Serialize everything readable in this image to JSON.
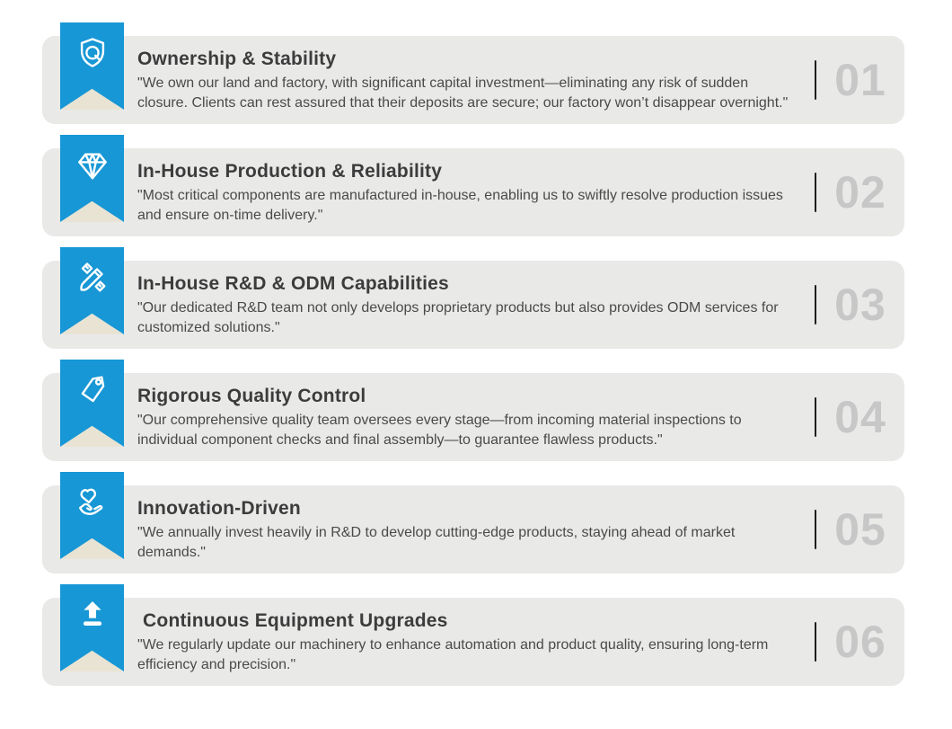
{
  "colors": {
    "page_background": "#ffffff",
    "card_background": "#e9e9e8",
    "ribbon_blue": "#1797d5",
    "ribbon_shadow_beige": "#e8e3d3",
    "number_gray": "#c7c7c7",
    "divider_dark": "#1d1d1d",
    "title_color": "#3c3c3c",
    "body_color": "#4a4a4a"
  },
  "items": [
    {
      "number": "01",
      "icon": "shield-quality-icon",
      "title": "Ownership & Stability",
      "description": "\"We own our land and factory, with significant capital investment—eliminating any risk of sudden closure. Clients can rest assured that their deposits are secure; our factory won’t disappear overnight.\""
    },
    {
      "number": "02",
      "icon": "diamond-icon",
      "title": "In-House Production & Reliability",
      "description": "\"Most critical components are manufactured in-house, enabling us to swiftly resolve production issues and ensure on-time delivery.\""
    },
    {
      "number": "03",
      "icon": "pencil-ruler-icon",
      "title": "In-House R&D & ODM Capabilities",
      "description": "\"Our dedicated R&D team not only develops proprietary products but also provides ODM services for customized solutions.\""
    },
    {
      "number": "04",
      "icon": "price-tag-icon",
      "title": "Rigorous Quality Control",
      "description": "\"Our comprehensive quality team oversees every stage—from incoming material inspections to individual component checks and final assembly—to guarantee flawless products.\""
    },
    {
      "number": "05",
      "icon": "hands-heart-icon",
      "title": "Innovation-Driven",
      "description": "\"We annually invest heavily in R&D to develop cutting-edge products, staying ahead of market demands.\""
    },
    {
      "number": "06",
      "icon": "upload-arrow-icon",
      "title": " Continuous Equipment Upgrades",
      "description": "\"We regularly update our machinery to enhance automation and product quality, ensuring long-term efficiency and precision.\""
    }
  ]
}
